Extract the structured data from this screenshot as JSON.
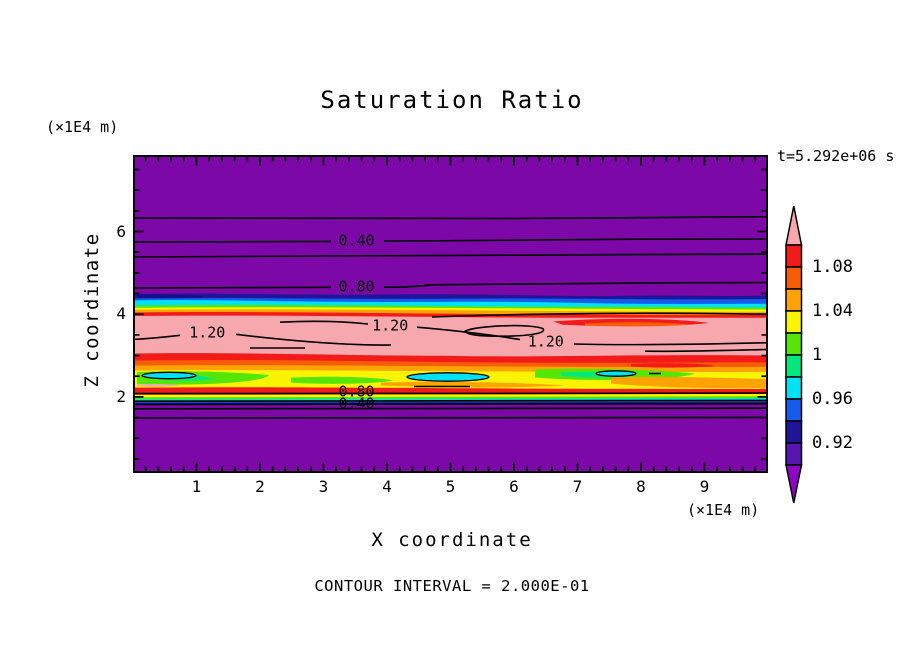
{
  "title": "Saturation Ratio",
  "timestamp": "t=5.292e+06 s",
  "axes": {
    "x_label": "X coordinate",
    "x_unit_label": "(×1E4 m)",
    "y_label": "Z coordinate",
    "y_unit_label": "(×1E4 m)"
  },
  "footer": {
    "contour_interval_label": "CONTOUR INTERVAL = 2.000E-01"
  },
  "chart_data": {
    "type": "heatmap",
    "subtype": "filled-contour",
    "title": "Saturation Ratio",
    "xlabel": "X coordinate",
    "ylabel": "Z coordinate",
    "x_units": "x1E4 m",
    "y_units": "x1E4 m",
    "time_annotation": "t=5.292e+06 s",
    "contour_interval": 0.2,
    "labeled_contour_levels": [
      0.4,
      0.8,
      1.2
    ],
    "xlim": [
      0,
      10
    ],
    "ylim": [
      0.16,
      7.85
    ],
    "x_major_ticks": [
      1,
      2,
      3,
      4,
      5,
      6,
      7,
      8,
      9
    ],
    "x_minor_step": 0.2,
    "y_major_ticks": [
      2,
      4,
      6
    ],
    "y_minor_step": 0.5,
    "grid": false,
    "contour_labels": [
      {
        "value": "0.40",
        "x": 3.52,
        "z": 5.77
      },
      {
        "value": "0.80",
        "x": 3.52,
        "z": 4.66
      },
      {
        "value": "1.20",
        "x": 1.17,
        "z": 3.55
      },
      {
        "value": "1.20",
        "x": 4.05,
        "z": 3.72
      },
      {
        "value": "1.20",
        "x": 6.5,
        "z": 3.33
      },
      {
        "value": "0.80",
        "x": 3.52,
        "z": 2.12
      },
      {
        "value": "0.40",
        "x": 3.52,
        "z": 1.83
      }
    ],
    "palette": {
      "pink": "#F7A8AE",
      "red": "#F31A1A",
      "orangered": "#F75C07",
      "orange": "#FFA303",
      "yellow": "#FBF400",
      "chartreuse": "#55E603",
      "springgreen": "#03E87D",
      "cyan": "#00E1F6",
      "blue": "#155CEC",
      "navy": "#201499",
      "darkviolet": "#5715B2",
      "purple": "#7D08A8",
      "under": "#9004C4"
    },
    "colorbar": {
      "position": "right",
      "top_value": 1.1,
      "segment_size": 0.02,
      "over_color_key": "pink",
      "under_color_key": "under",
      "segments": [
        {
          "palette": "red",
          "range": [
            1.08,
            1.1
          ]
        },
        {
          "palette": "orangered",
          "range": [
            1.06,
            1.08
          ]
        },
        {
          "palette": "orange",
          "range": [
            1.04,
            1.06
          ]
        },
        {
          "palette": "yellow",
          "range": [
            1.02,
            1.04
          ]
        },
        {
          "palette": "chartreuse",
          "range": [
            1.0,
            1.02
          ]
        },
        {
          "palette": "springgreen",
          "range": [
            0.98,
            1.0
          ]
        },
        {
          "palette": "cyan",
          "range": [
            0.96,
            0.98
          ]
        },
        {
          "palette": "blue",
          "range": [
            0.94,
            0.96
          ]
        },
        {
          "palette": "navy",
          "range": [
            0.92,
            0.94
          ]
        },
        {
          "palette": "darkviolet",
          "range": [
            0.9,
            0.92
          ]
        }
      ],
      "labels": [
        {
          "text": "1.08",
          "value": 1.08
        },
        {
          "text": "1.04",
          "value": 1.04
        },
        {
          "text": "1",
          "value": 1.0
        },
        {
          "text": "0.96",
          "value": 0.96
        },
        {
          "text": "0.92",
          "value": 0.92
        }
      ]
    },
    "field_summary": {
      "description": "Horizontally stratified saturation-ratio field on a purple (<0.2) background. Values increase downward from z≈7.8 through labeled contours 0.40 (z≈5.8) and 0.80 (z≈4.7); a thin blue/cyan/green/orange transition sits near z≈4.0; a wide supersaturated pink band (>1.10, with 1.20 contours) spans z≈2.9–3.7; mixed red/orange/yellow/green 0.9–1.1 layers span z≈2.2–2.9; values fall sharply back through 0.80 (z≈2.1) and 0.40 (z≈1.8) into purple below z≈1.7.",
      "background_color": "#7D08A8"
    }
  }
}
